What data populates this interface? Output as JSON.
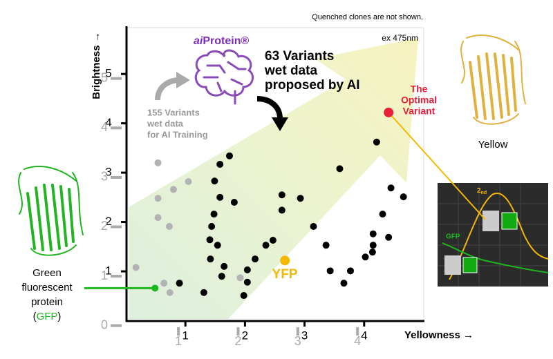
{
  "chart_data": {
    "type": "scatter",
    "x_label": "Yellowness →",
    "y_label": "Brightness →",
    "note": "Quenched clones are not shown.",
    "excitation": "ex 475nm",
    "xlim": [
      0,
      5
    ],
    "ylim": [
      0,
      5.94
    ],
    "xticks": [
      1,
      2,
      3,
      4
    ],
    "yticks": [
      1,
      2,
      3,
      4,
      5
    ],
    "x2lim": [
      0.13,
      5.11
    ],
    "y2lim": [
      0.1,
      6.03
    ],
    "x2ticks": [
      1,
      2,
      3,
      4
    ],
    "y2ticks": [
      0,
      1,
      2,
      3,
      4,
      5
    ],
    "logo": {
      "prefix": "ai",
      "name": "Protein®"
    },
    "series": [
      {
        "label_lines": [
          "155 Variants",
          "wet data",
          "for AI Training"
        ],
        "color": "#b3b3b3",
        "x": [
          0.17,
          0.54,
          0.54,
          0.54,
          0.8,
          0.73,
          1.05,
          0.64,
          0.74,
          1.92
        ],
        "values": [
          1.08,
          3.2,
          2.48,
          2.09,
          2.66,
          1.91,
          2.82,
          0.76,
          0.57,
          0.87
        ]
      },
      {
        "label_lines": [
          "63 Variants",
          "wet data",
          "proposed by AI"
        ],
        "color": "#000000",
        "x": [
          0.9,
          1.31,
          1.74,
          1.58,
          1.49,
          1.58,
          1.48,
          1.44,
          1.41,
          1.54,
          1.42,
          1.65,
          1.61,
          1.82,
          2.04,
          2.04,
          1.98,
          2.17,
          2.35,
          2.47,
          2.62,
          2.62,
          2.93,
          3.15,
          3.36,
          3.43,
          3.66,
          3.77,
          3.59,
          4.02,
          4.15,
          4.15,
          4.21,
          4.14,
          4.31,
          4.41,
          4.45,
          4.66
        ],
        "values": [
          0.76,
          0.57,
          3.34,
          3.17,
          2.83,
          2.5,
          2.16,
          1.91,
          1.64,
          1.53,
          1.25,
          1.1,
          0.9,
          2.4,
          1.03,
          0.78,
          0.51,
          1.25,
          1.53,
          1.63,
          2.55,
          2.24,
          2.48,
          1.91,
          1.53,
          1.01,
          0.76,
          1.01,
          3.08,
          1.29,
          1.53,
          1.76,
          3.62,
          1.39,
          2.16,
          1.69,
          2.69,
          2.51
        ]
      },
      {
        "label_lines": [
          "YFP"
        ],
        "color": "#f5b800",
        "x": [
          2.67
        ],
        "values": [
          1.22
        ]
      },
      {
        "label_lines": [
          "Green",
          "fluorescent",
          "protein"
        ],
        "abbr_open": "(",
        "abbr": "GFP",
        "abbr_close": ")",
        "color": "#1fb51f",
        "x": [
          0.49
        ],
        "values": [
          0.66
        ]
      },
      {
        "label_lines": [
          "The",
          "Optimal",
          "Variant"
        ],
        "color": "#e8213b",
        "x": [
          4.41
        ],
        "values": [
          4.22
        ]
      }
    ],
    "structure_label": "Yellow",
    "inset": {
      "second": "2",
      "second_suffix": "nd",
      "gfp": "GFP"
    }
  }
}
